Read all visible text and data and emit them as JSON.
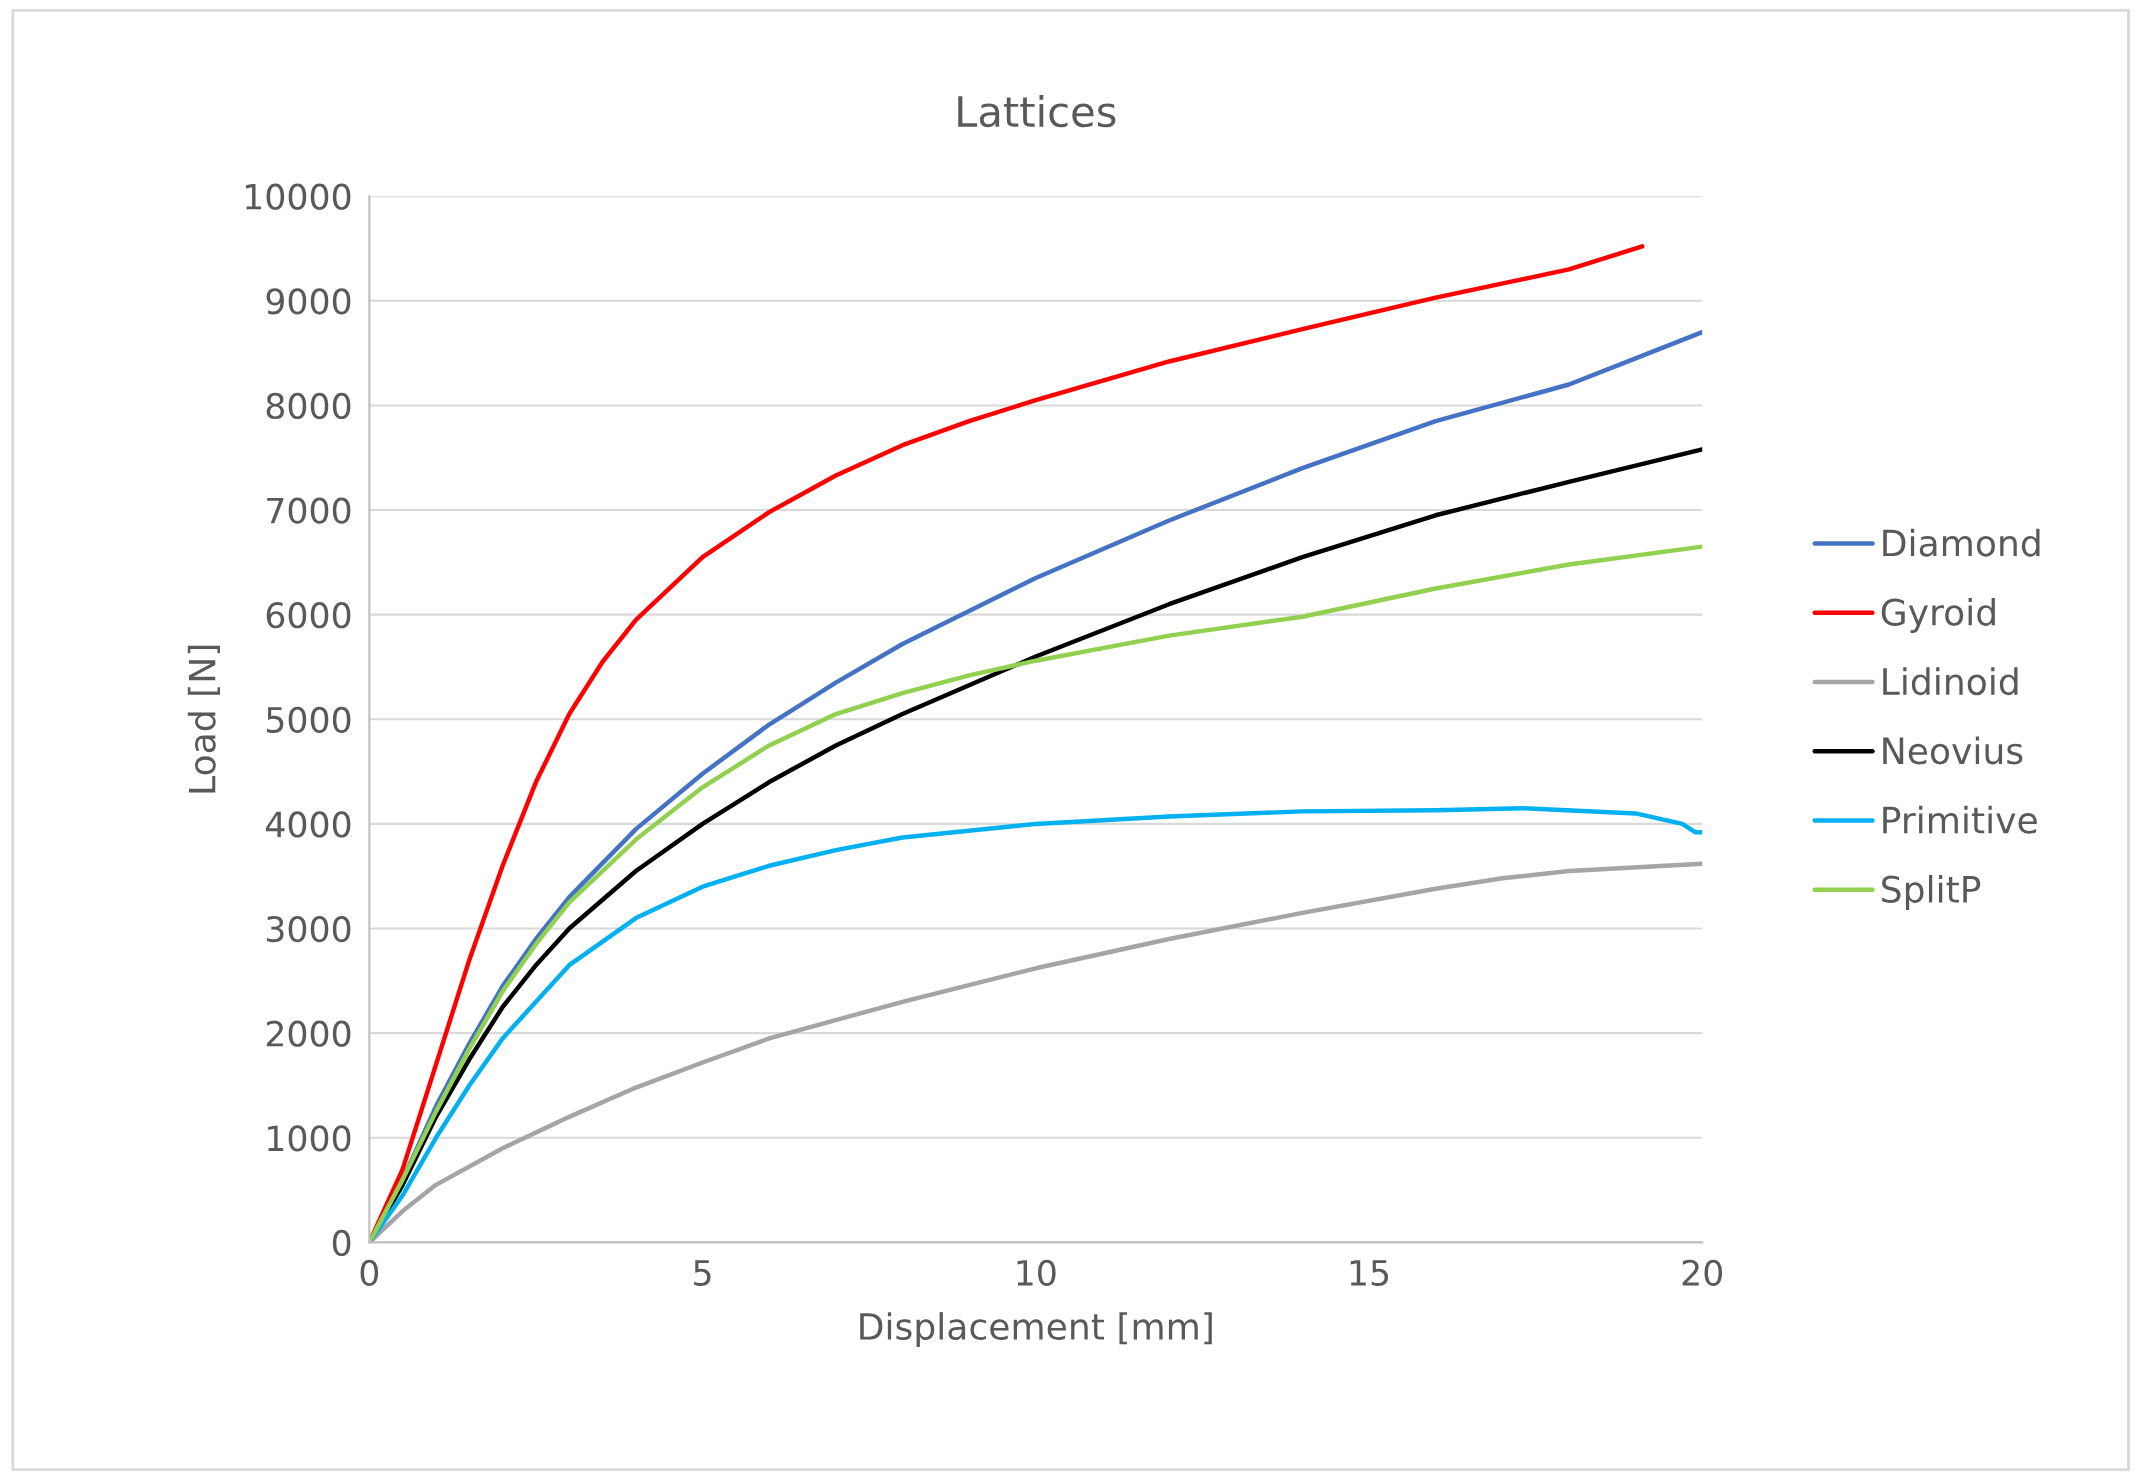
{
  "chart_data": {
    "type": "line",
    "title": "Lattices",
    "xlabel": "Displacement [mm]",
    "ylabel": "Load [N]",
    "xlim": [
      0,
      20
    ],
    "xticks": [
      0,
      5,
      10,
      15,
      20
    ],
    "ylim": [
      0,
      10000
    ],
    "yticks": [
      0,
      1000,
      2000,
      3000,
      4000,
      5000,
      6000,
      7000,
      8000,
      9000,
      10000
    ],
    "grid": "y",
    "legend": "right",
    "marker": "none",
    "line_style": "solid",
    "series": [
      {
        "name": "Diamond",
        "color": "#4472c4",
        "x": [
          0,
          0.5,
          1,
          1.5,
          2,
          2.5,
          3,
          4,
          5,
          6,
          7,
          8,
          10,
          12,
          14,
          16,
          18,
          19,
          20
        ],
        "values": [
          0,
          600,
          1300,
          1900,
          2450,
          2900,
          3300,
          3950,
          4480,
          4950,
          5350,
          5720,
          6350,
          6900,
          7400,
          7850,
          8200,
          8450,
          8700
        ]
      },
      {
        "name": "Gyroid",
        "color": "#ff0000",
        "x": [
          0,
          0.5,
          1,
          1.5,
          2,
          2.5,
          3,
          3.5,
          4,
          5,
          6,
          7,
          8,
          9,
          10,
          12,
          14,
          16,
          18,
          19.1
        ],
        "values": [
          0,
          700,
          1700,
          2700,
          3600,
          4400,
          5050,
          5550,
          5950,
          6550,
          6980,
          7330,
          7620,
          7850,
          8050,
          8420,
          8730,
          9030,
          9300,
          9520
        ]
      },
      {
        "name": "Lidinoid",
        "color": "#a5a5a5",
        "x": [
          0,
          0.5,
          1,
          2,
          3,
          4,
          5,
          6,
          8,
          10,
          12,
          14,
          16,
          17,
          18,
          20
        ],
        "values": [
          0,
          300,
          550,
          900,
          1200,
          1480,
          1720,
          1950,
          2300,
          2620,
          2900,
          3150,
          3380,
          3480,
          3550,
          3620
        ]
      },
      {
        "name": "Neovius",
        "color": "#000000",
        "x": [
          0,
          0.5,
          1,
          1.5,
          2,
          2.5,
          3,
          4,
          5,
          6,
          7,
          8,
          10,
          12,
          14,
          16,
          18,
          20
        ],
        "values": [
          0,
          550,
          1200,
          1750,
          2250,
          2650,
          3000,
          3550,
          4000,
          4400,
          4750,
          5050,
          5600,
          6100,
          6550,
          6950,
          7270,
          7580
        ]
      },
      {
        "name": "Primitive",
        "color": "#00b0f0",
        "x": [
          0,
          0.5,
          1,
          1.5,
          2,
          2.5,
          3,
          4,
          5,
          6,
          7,
          8,
          10,
          12,
          14,
          16,
          17.3,
          19,
          19.7,
          19.9,
          20
        ],
        "values": [
          0,
          450,
          1000,
          1500,
          1950,
          2300,
          2650,
          3100,
          3400,
          3600,
          3750,
          3870,
          4000,
          4070,
          4120,
          4130,
          4150,
          4100,
          4000,
          3920,
          3920
        ]
      },
      {
        "name": "SplitP",
        "color": "#92d050",
        "x": [
          0,
          0.5,
          1,
          1.5,
          2,
          2.5,
          3,
          4,
          5,
          6,
          7,
          8,
          9,
          10,
          12,
          14,
          16,
          18,
          20
        ],
        "values": [
          0,
          600,
          1250,
          1850,
          2400,
          2850,
          3250,
          3850,
          4350,
          4750,
          5050,
          5250,
          5420,
          5560,
          5800,
          5980,
          6250,
          6480,
          6650
        ]
      }
    ]
  }
}
